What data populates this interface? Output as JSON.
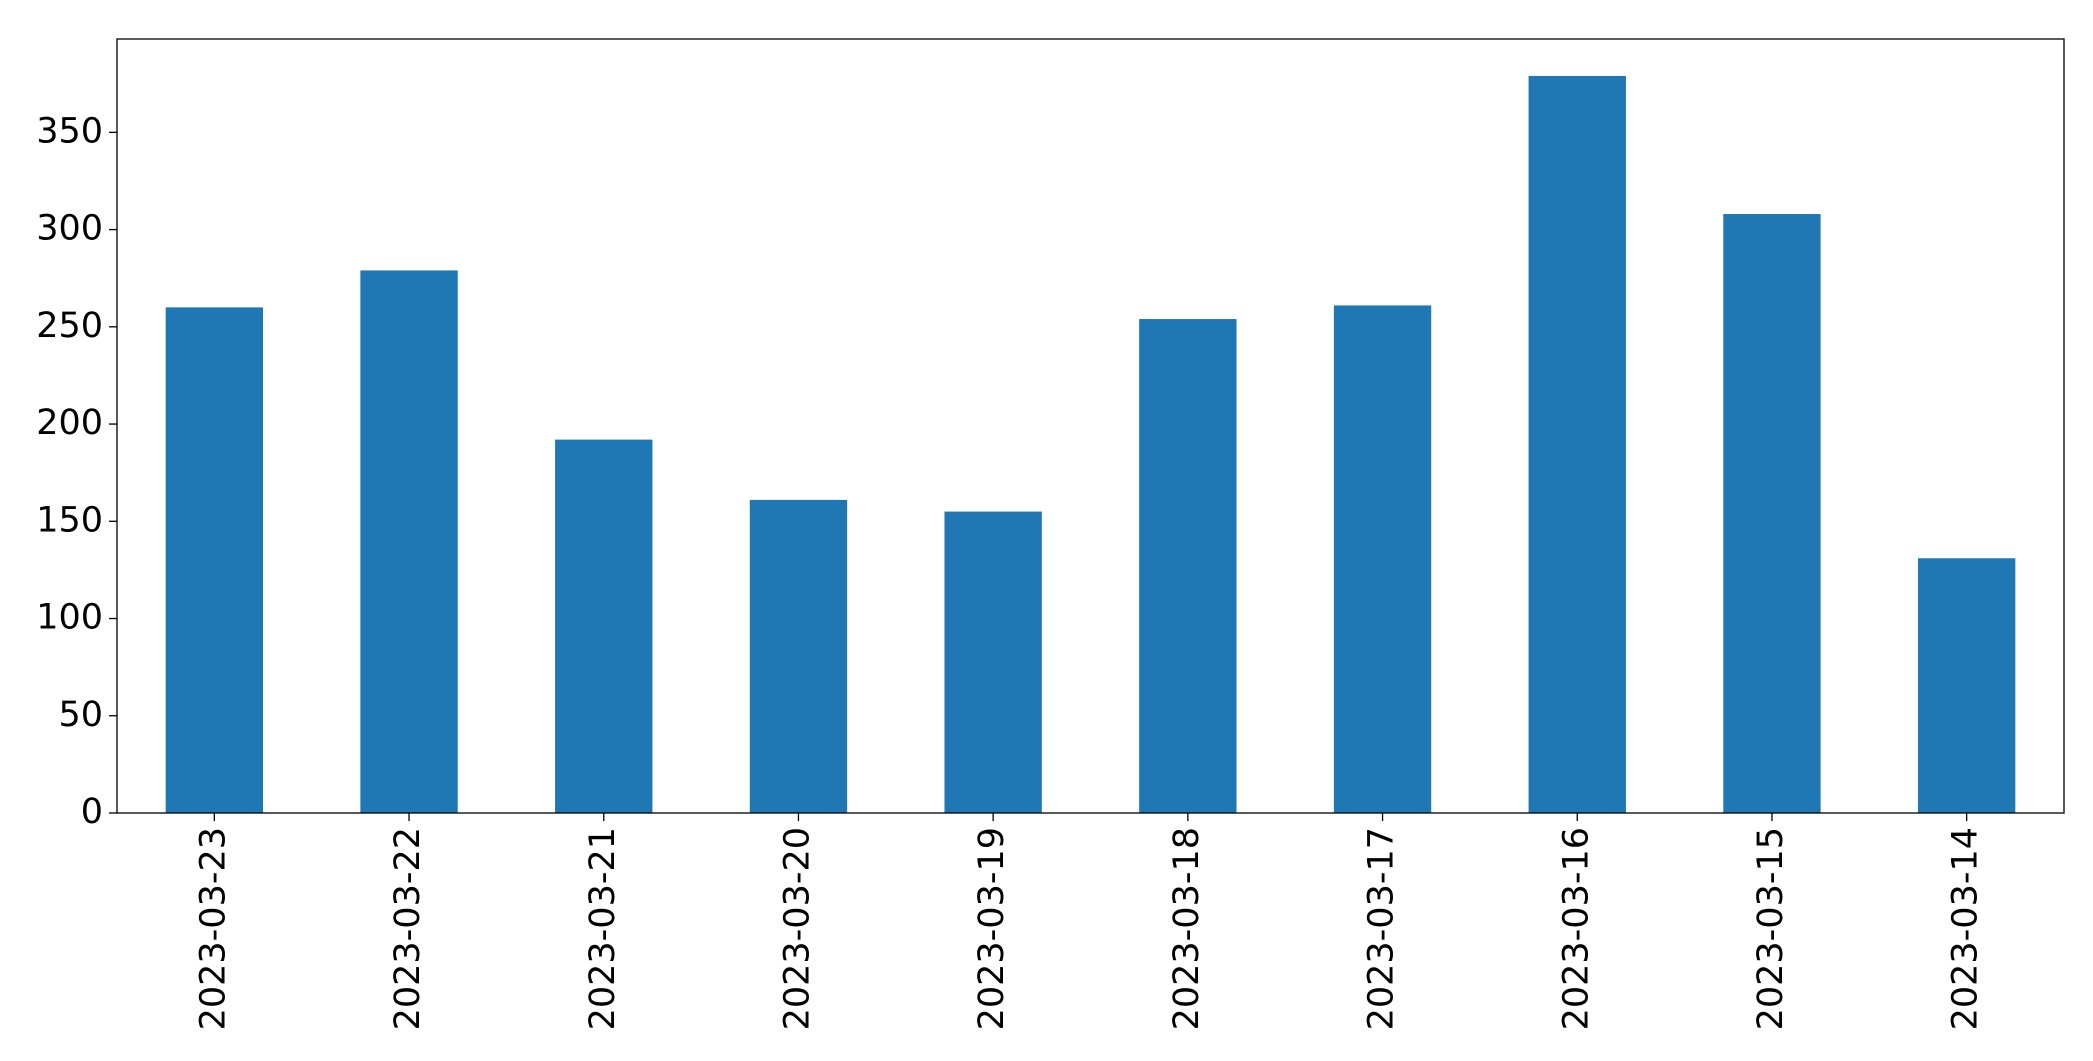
{
  "chart_data": {
    "type": "bar",
    "categories": [
      "2023-03-23",
      "2023-03-22",
      "2023-03-21",
      "2023-03-20",
      "2023-03-19",
      "2023-03-18",
      "2023-03-17",
      "2023-03-16",
      "2023-03-15",
      "2023-03-14"
    ],
    "values": [
      260,
      279,
      192,
      161,
      155,
      254,
      261,
      379,
      308,
      131
    ],
    "color": "#1f77b4",
    "ylim": [
      0,
      398
    ],
    "yticks": [
      0,
      50,
      100,
      150,
      200,
      250,
      300,
      350
    ],
    "grid": false
  }
}
